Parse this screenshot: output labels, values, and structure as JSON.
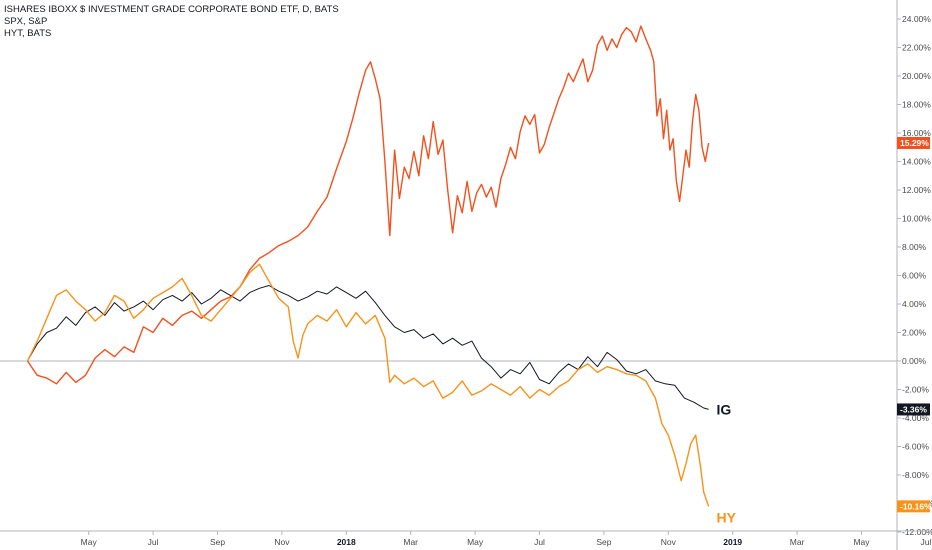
{
  "legend": {
    "line1": "ISHARES IBOXX $ INVESTMENT GRADE CORPORATE BOND ETF, D, BATS",
    "line2": "SPX, S&P",
    "line3": "HYT, BATS"
  },
  "chart_data": {
    "type": "line",
    "ylim": [
      -12,
      25
    ],
    "y_ticks": [
      24,
      22,
      20,
      18,
      16,
      14,
      12,
      10,
      8,
      6,
      4,
      2,
      0,
      -2,
      -4,
      -6,
      -8,
      -10,
      -12
    ],
    "y_tick_labels": [
      "24.00%",
      "22.00%",
      "20.00%",
      "18.00%",
      "16.00%",
      "14.00%",
      "12.00%",
      "10.00%",
      "8.00%",
      "6.00%",
      "4.00%",
      "2.00%",
      "0.00%",
      "-2.00%",
      "-4.00%",
      "-6.00%",
      "-8.00%",
      "-10.00%",
      "-12.00%"
    ],
    "x_ticks": [
      {
        "label": "May",
        "m": 1
      },
      {
        "label": "Jul",
        "m": 3
      },
      {
        "label": "Sep",
        "m": 5
      },
      {
        "label": "Nov",
        "m": 7
      },
      {
        "label": "2018",
        "m": 9,
        "bold": true
      },
      {
        "label": "Mar",
        "m": 11
      },
      {
        "label": "May",
        "m": 13
      },
      {
        "label": "Jul",
        "m": 15
      },
      {
        "label": "Sep",
        "m": 17
      },
      {
        "label": "Nov",
        "m": 19
      },
      {
        "label": "2019",
        "m": 21,
        "bold": true
      },
      {
        "label": "Mar",
        "m": 23
      },
      {
        "label": "May",
        "m": 25
      },
      {
        "label": "Jul",
        "m": 27
      }
    ],
    "x_unit": "months since 2017-04-01",
    "zero_line": true,
    "series": [
      {
        "name": "SPX",
        "color": "#f3501d",
        "last_label": "15.29%",
        "points": [
          [
            -0.9,
            0
          ],
          [
            -0.6,
            -1.0
          ],
          [
            -0.3,
            -1.2
          ],
          [
            0.0,
            -1.6
          ],
          [
            0.3,
            -0.8
          ],
          [
            0.6,
            -1.5
          ],
          [
            0.9,
            -1.0
          ],
          [
            1.2,
            0.2
          ],
          [
            1.5,
            0.8
          ],
          [
            1.8,
            0.3
          ],
          [
            2.1,
            1.0
          ],
          [
            2.4,
            0.6
          ],
          [
            2.7,
            2.4
          ],
          [
            3.0,
            2.0
          ],
          [
            3.3,
            3.0
          ],
          [
            3.6,
            2.5
          ],
          [
            3.9,
            3.2
          ],
          [
            4.2,
            3.5
          ],
          [
            4.5,
            3.0
          ],
          [
            4.8,
            3.6
          ],
          [
            5.1,
            4.2
          ],
          [
            5.4,
            4.5
          ],
          [
            5.7,
            5.2
          ],
          [
            6.0,
            6.4
          ],
          [
            6.3,
            7.2
          ],
          [
            6.6,
            7.6
          ],
          [
            6.9,
            8.1
          ],
          [
            7.2,
            8.4
          ],
          [
            7.5,
            8.8
          ],
          [
            7.8,
            9.4
          ],
          [
            8.1,
            10.5
          ],
          [
            8.4,
            11.5
          ],
          [
            8.7,
            13.5
          ],
          [
            9.0,
            15.4
          ],
          [
            9.2,
            17.0
          ],
          [
            9.4,
            18.8
          ],
          [
            9.6,
            20.4
          ],
          [
            9.75,
            21.0
          ],
          [
            9.9,
            19.8
          ],
          [
            10.05,
            18.4
          ],
          [
            10.2,
            14.0
          ],
          [
            10.35,
            8.8
          ],
          [
            10.5,
            14.8
          ],
          [
            10.65,
            11.4
          ],
          [
            10.8,
            13.6
          ],
          [
            10.95,
            12.8
          ],
          [
            11.1,
            14.7
          ],
          [
            11.25,
            13.0
          ],
          [
            11.4,
            15.8
          ],
          [
            11.55,
            14.2
          ],
          [
            11.7,
            16.8
          ],
          [
            11.85,
            14.5
          ],
          [
            12.0,
            15.5
          ],
          [
            12.15,
            12.0
          ],
          [
            12.3,
            9.0
          ],
          [
            12.45,
            11.6
          ],
          [
            12.6,
            10.4
          ],
          [
            12.75,
            12.6
          ],
          [
            12.9,
            10.5
          ],
          [
            13.05,
            11.8
          ],
          [
            13.2,
            12.4
          ],
          [
            13.35,
            11.5
          ],
          [
            13.5,
            12.2
          ],
          [
            13.65,
            10.8
          ],
          [
            13.8,
            12.8
          ],
          [
            13.95,
            13.8
          ],
          [
            14.1,
            15.0
          ],
          [
            14.25,
            14.2
          ],
          [
            14.4,
            16.1
          ],
          [
            14.55,
            17.2
          ],
          [
            14.7,
            16.6
          ],
          [
            14.85,
            17.3
          ],
          [
            15.0,
            14.6
          ],
          [
            15.15,
            15.2
          ],
          [
            15.3,
            16.4
          ],
          [
            15.45,
            17.4
          ],
          [
            15.6,
            18.4
          ],
          [
            15.75,
            19.2
          ],
          [
            15.9,
            20.2
          ],
          [
            16.05,
            19.6
          ],
          [
            16.2,
            20.4
          ],
          [
            16.35,
            21.2
          ],
          [
            16.5,
            19.6
          ],
          [
            16.65,
            20.4
          ],
          [
            16.8,
            22.2
          ],
          [
            16.95,
            22.8
          ],
          [
            17.1,
            21.8
          ],
          [
            17.25,
            22.6
          ],
          [
            17.4,
            22.0
          ],
          [
            17.55,
            22.9
          ],
          [
            17.7,
            23.4
          ],
          [
            17.85,
            23.1
          ],
          [
            18.0,
            22.4
          ],
          [
            18.15,
            23.5
          ],
          [
            18.3,
            22.6
          ],
          [
            18.45,
            21.8
          ],
          [
            18.55,
            21.0
          ],
          [
            18.65,
            17.2
          ],
          [
            18.75,
            18.4
          ],
          [
            18.85,
            15.6
          ],
          [
            18.95,
            17.6
          ],
          [
            19.05,
            14.8
          ],
          [
            19.15,
            15.6
          ],
          [
            19.25,
            12.6
          ],
          [
            19.35,
            11.2
          ],
          [
            19.45,
            13.0
          ],
          [
            19.55,
            14.8
          ],
          [
            19.65,
            13.6
          ],
          [
            19.75,
            16.8
          ],
          [
            19.85,
            18.7
          ],
          [
            19.95,
            17.6
          ],
          [
            20.05,
            15.0
          ],
          [
            20.15,
            14.0
          ],
          [
            20.25,
            15.3
          ]
        ]
      },
      {
        "name": "IG",
        "color": "#131722",
        "last_label": "-3.36%",
        "annotation": "IG",
        "points": [
          [
            -0.9,
            0
          ],
          [
            -0.6,
            1.2
          ],
          [
            -0.3,
            2.0
          ],
          [
            0.0,
            2.3
          ],
          [
            0.3,
            3.1
          ],
          [
            0.6,
            2.5
          ],
          [
            0.9,
            3.4
          ],
          [
            1.2,
            3.8
          ],
          [
            1.5,
            3.2
          ],
          [
            1.8,
            4.1
          ],
          [
            2.1,
            3.5
          ],
          [
            2.4,
            3.8
          ],
          [
            2.7,
            4.2
          ],
          [
            3.0,
            3.6
          ],
          [
            3.3,
            4.3
          ],
          [
            3.6,
            4.6
          ],
          [
            3.9,
            4.2
          ],
          [
            4.2,
            4.8
          ],
          [
            4.5,
            4.0
          ],
          [
            4.8,
            4.4
          ],
          [
            5.1,
            5.0
          ],
          [
            5.4,
            4.6
          ],
          [
            5.7,
            4.2
          ],
          [
            6.0,
            4.8
          ],
          [
            6.3,
            5.1
          ],
          [
            6.6,
            5.3
          ],
          [
            6.9,
            4.9
          ],
          [
            7.2,
            4.6
          ],
          [
            7.5,
            4.2
          ],
          [
            7.8,
            4.5
          ],
          [
            8.1,
            4.9
          ],
          [
            8.4,
            4.7
          ],
          [
            8.7,
            5.2
          ],
          [
            9.0,
            4.8
          ],
          [
            9.3,
            4.4
          ],
          [
            9.6,
            4.9
          ],
          [
            9.9,
            4.1
          ],
          [
            10.2,
            3.2
          ],
          [
            10.5,
            2.4
          ],
          [
            10.8,
            2.0
          ],
          [
            11.1,
            2.2
          ],
          [
            11.4,
            1.6
          ],
          [
            11.7,
            1.9
          ],
          [
            12.0,
            1.2
          ],
          [
            12.3,
            1.6
          ],
          [
            12.6,
            1.1
          ],
          [
            12.9,
            1.4
          ],
          [
            13.2,
            0.2
          ],
          [
            13.5,
            -0.4
          ],
          [
            13.8,
            -1.2
          ],
          [
            14.1,
            -0.6
          ],
          [
            14.4,
            -0.9
          ],
          [
            14.7,
            -0.1
          ],
          [
            15.0,
            -1.3
          ],
          [
            15.3,
            -1.6
          ],
          [
            15.6,
            -0.8
          ],
          [
            15.9,
            -0.2
          ],
          [
            16.2,
            -0.6
          ],
          [
            16.5,
            0.3
          ],
          [
            16.8,
            -0.4
          ],
          [
            17.1,
            0.6
          ],
          [
            17.4,
            0.1
          ],
          [
            17.7,
            -0.7
          ],
          [
            18.0,
            -0.9
          ],
          [
            18.3,
            -0.6
          ],
          [
            18.6,
            -1.4
          ],
          [
            18.9,
            -1.6
          ],
          [
            19.2,
            -1.7
          ],
          [
            19.5,
            -2.6
          ],
          [
            19.8,
            -2.9
          ],
          [
            20.1,
            -3.3
          ],
          [
            20.25,
            -3.4
          ]
        ]
      },
      {
        "name": "HY",
        "color": "#f7931a",
        "last_label": "-10.16%",
        "annotation": "HY",
        "points": [
          [
            -0.9,
            0
          ],
          [
            -0.6,
            1.4
          ],
          [
            -0.3,
            3.0
          ],
          [
            0.0,
            4.6
          ],
          [
            0.3,
            5.0
          ],
          [
            0.6,
            4.2
          ],
          [
            0.9,
            3.6
          ],
          [
            1.2,
            2.8
          ],
          [
            1.5,
            3.4
          ],
          [
            1.8,
            4.6
          ],
          [
            2.1,
            4.2
          ],
          [
            2.4,
            3.0
          ],
          [
            2.7,
            3.6
          ],
          [
            3.0,
            4.4
          ],
          [
            3.3,
            4.8
          ],
          [
            3.6,
            5.2
          ],
          [
            3.9,
            5.8
          ],
          [
            4.2,
            4.6
          ],
          [
            4.5,
            3.2
          ],
          [
            4.8,
            2.8
          ],
          [
            5.1,
            3.6
          ],
          [
            5.4,
            4.4
          ],
          [
            5.7,
            5.2
          ],
          [
            6.0,
            6.2
          ],
          [
            6.3,
            6.8
          ],
          [
            6.6,
            5.6
          ],
          [
            6.9,
            4.4
          ],
          [
            7.2,
            3.8
          ],
          [
            7.35,
            1.4
          ],
          [
            7.5,
            0.2
          ],
          [
            7.65,
            1.8
          ],
          [
            7.8,
            2.6
          ],
          [
            8.1,
            3.2
          ],
          [
            8.4,
            2.8
          ],
          [
            8.7,
            3.6
          ],
          [
            9.0,
            2.4
          ],
          [
            9.3,
            3.4
          ],
          [
            9.6,
            2.6
          ],
          [
            9.9,
            3.2
          ],
          [
            10.2,
            1.6
          ],
          [
            10.35,
            -1.5
          ],
          [
            10.5,
            -1.0
          ],
          [
            10.8,
            -1.6
          ],
          [
            11.1,
            -1.2
          ],
          [
            11.4,
            -1.8
          ],
          [
            11.7,
            -1.4
          ],
          [
            12.0,
            -2.6
          ],
          [
            12.3,
            -2.2
          ],
          [
            12.6,
            -1.4
          ],
          [
            12.9,
            -2.4
          ],
          [
            13.2,
            -2.1
          ],
          [
            13.5,
            -1.6
          ],
          [
            13.8,
            -2.0
          ],
          [
            14.1,
            -2.4
          ],
          [
            14.4,
            -1.8
          ],
          [
            14.7,
            -2.6
          ],
          [
            15.0,
            -2.0
          ],
          [
            15.3,
            -2.4
          ],
          [
            15.6,
            -1.8
          ],
          [
            15.9,
            -1.4
          ],
          [
            16.2,
            -0.6
          ],
          [
            16.5,
            -0.2
          ],
          [
            16.8,
            -0.8
          ],
          [
            17.1,
            -0.4
          ],
          [
            17.4,
            -0.6
          ],
          [
            17.7,
            -0.9
          ],
          [
            18.0,
            -1.0
          ],
          [
            18.3,
            -1.4
          ],
          [
            18.6,
            -2.6
          ],
          [
            18.8,
            -4.4
          ],
          [
            19.0,
            -5.2
          ],
          [
            19.2,
            -6.6
          ],
          [
            19.4,
            -8.4
          ],
          [
            19.55,
            -7.2
          ],
          [
            19.7,
            -5.8
          ],
          [
            19.85,
            -5.2
          ],
          [
            20.0,
            -7.4
          ],
          [
            20.1,
            -9.2
          ],
          [
            20.25,
            -10.2
          ]
        ]
      }
    ]
  }
}
